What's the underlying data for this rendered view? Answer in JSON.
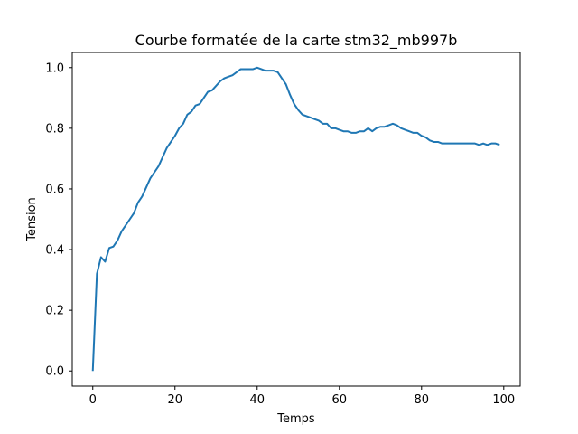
{
  "chart_data": {
    "type": "line",
    "title": "Courbe formatée de la carte stm32_mb997b",
    "xlabel": "Temps",
    "ylabel": "Tension",
    "xlim": [
      -5,
      104
    ],
    "ylim": [
      -0.05,
      1.05
    ],
    "xticks": [
      0,
      20,
      40,
      60,
      80,
      100
    ],
    "xtick_labels": [
      "0",
      "20",
      "40",
      "60",
      "80",
      "100"
    ],
    "yticks": [
      0.0,
      0.2,
      0.4,
      0.6,
      0.8,
      1.0
    ],
    "ytick_labels": [
      "0.0",
      "0.2",
      "0.4",
      "0.6",
      "0.8",
      "1.0"
    ],
    "grid": false,
    "legend": "none",
    "series": [
      {
        "color": "#1f77b4",
        "x": [
          0,
          1,
          2,
          3,
          4,
          5,
          6,
          7,
          8,
          9,
          10,
          11,
          12,
          13,
          14,
          15,
          16,
          17,
          18,
          19,
          20,
          21,
          22,
          23,
          24,
          25,
          26,
          27,
          28,
          29,
          30,
          31,
          32,
          33,
          34,
          35,
          36,
          37,
          38,
          39,
          40,
          41,
          42,
          43,
          44,
          45,
          46,
          47,
          48,
          49,
          50,
          51,
          52,
          53,
          54,
          55,
          56,
          57,
          58,
          59,
          60,
          61,
          62,
          63,
          64,
          65,
          66,
          67,
          68,
          69,
          70,
          71,
          72,
          73,
          74,
          75,
          76,
          77,
          78,
          79,
          80,
          81,
          82,
          83,
          84,
          85,
          86,
          87,
          88,
          89,
          90,
          91,
          92,
          93,
          94,
          95,
          96,
          97,
          98,
          99
        ],
        "y": [
          0.0,
          0.32,
          0.375,
          0.36,
          0.405,
          0.41,
          0.43,
          0.46,
          0.48,
          0.5,
          0.52,
          0.555,
          0.575,
          0.605,
          0.635,
          0.655,
          0.675,
          0.705,
          0.735,
          0.755,
          0.775,
          0.8,
          0.815,
          0.845,
          0.855,
          0.875,
          0.88,
          0.9,
          0.92,
          0.925,
          0.94,
          0.955,
          0.965,
          0.97,
          0.975,
          0.985,
          0.995,
          0.995,
          0.995,
          0.995,
          1.0,
          0.995,
          0.99,
          0.99,
          0.99,
          0.985,
          0.965,
          0.945,
          0.91,
          0.88,
          0.86,
          0.845,
          0.84,
          0.835,
          0.83,
          0.825,
          0.815,
          0.815,
          0.8,
          0.8,
          0.795,
          0.79,
          0.79,
          0.785,
          0.785,
          0.79,
          0.79,
          0.8,
          0.79,
          0.8,
          0.805,
          0.805,
          0.81,
          0.815,
          0.81,
          0.8,
          0.795,
          0.79,
          0.785,
          0.785,
          0.775,
          0.77,
          0.76,
          0.755,
          0.755,
          0.75,
          0.75,
          0.75,
          0.75,
          0.75,
          0.75,
          0.75,
          0.75,
          0.75,
          0.745,
          0.75,
          0.745,
          0.75,
          0.75,
          0.745
        ]
      }
    ]
  }
}
